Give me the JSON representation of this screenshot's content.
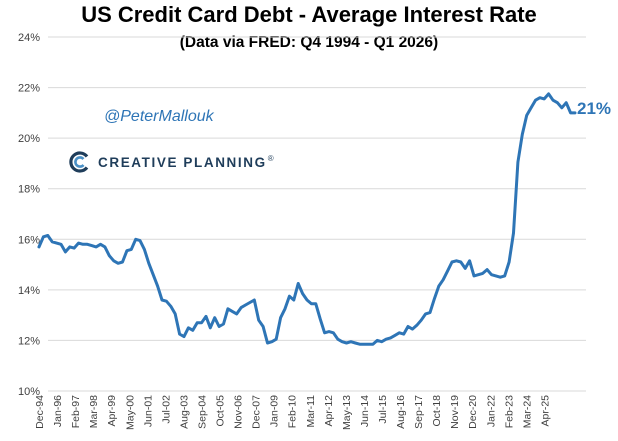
{
  "chart_data": {
    "type": "line",
    "title": "US Credit Card Debt - Average Interest Rate",
    "subtitle": "(Data via FRED: Q4 1994 - Q1 2026)",
    "xlabel": "",
    "ylabel": "",
    "ylim": [
      10,
      24
    ],
    "yticks": [
      "10%",
      "12%",
      "14%",
      "16%",
      "18%",
      "20%",
      "22%",
      "24%"
    ],
    "ytick_values": [
      10,
      12,
      14,
      16,
      18,
      20,
      22,
      24
    ],
    "grid": true,
    "x_tick_labels": [
      "Dec-94",
      "Jan-96",
      "Feb-97",
      "Mar-98",
      "Apr-99",
      "May-00",
      "Jun-01",
      "Jul-02",
      "Aug-03",
      "Sep-04",
      "Oct-05",
      "Nov-06",
      "Dec-07",
      "Jan-09",
      "Feb-10",
      "Mar-11",
      "Apr-12",
      "May-13",
      "Jun-14",
      "Jul-15",
      "Aug-16",
      "Sep-17",
      "Oct-18",
      "Nov-19",
      "Dec-20",
      "Jan-22",
      "Feb-23",
      "Mar-24",
      "Apr-25"
    ],
    "series": [
      {
        "color": "#2e75b6",
        "end_label": "21%",
        "x_start": "1994-Q4",
        "x_step": "quarter",
        "values": [
          15.7,
          16.1,
          16.15,
          15.9,
          15.85,
          15.8,
          15.5,
          15.7,
          15.65,
          15.85,
          15.8,
          15.8,
          15.75,
          15.7,
          15.8,
          15.7,
          15.35,
          15.15,
          15.05,
          15.1,
          15.55,
          15.6,
          16.0,
          15.95,
          15.6,
          15.05,
          14.6,
          14.15,
          13.6,
          13.55,
          13.35,
          13.05,
          12.25,
          12.15,
          12.5,
          12.4,
          12.7,
          12.7,
          12.95,
          12.5,
          12.9,
          12.55,
          12.65,
          13.25,
          13.15,
          13.05,
          13.3,
          13.4,
          13.5,
          13.6,
          12.8,
          12.55,
          11.9,
          11.95,
          12.05,
          12.9,
          13.25,
          13.75,
          13.6,
          14.25,
          13.85,
          13.6,
          13.45,
          13.45,
          12.85,
          12.3,
          12.35,
          12.3,
          12.05,
          11.95,
          11.9,
          11.95,
          11.9,
          11.85,
          11.85,
          11.85,
          11.85,
          12.0,
          11.95,
          12.05,
          12.1,
          12.2,
          12.3,
          12.25,
          12.55,
          12.45,
          12.6,
          12.8,
          13.05,
          13.1,
          13.65,
          14.15,
          14.4,
          14.75,
          15.1,
          15.15,
          15.1,
          14.85,
          15.15,
          14.55,
          14.6,
          14.65,
          14.8,
          14.6,
          14.55,
          14.5,
          14.55,
          15.1,
          16.25,
          19.05,
          20.15,
          20.9,
          21.2,
          21.5,
          21.6,
          21.55,
          21.75,
          21.5,
          21.4,
          21.2,
          21.4,
          21.0,
          21.0
        ]
      }
    ]
  },
  "annotations": {
    "handle": "@PeterMallouk",
    "brand_name": "CREATIVE PLANNING",
    "brand_trademark": "®",
    "brand_logo_icon": "creative-planning-logo-icon"
  }
}
